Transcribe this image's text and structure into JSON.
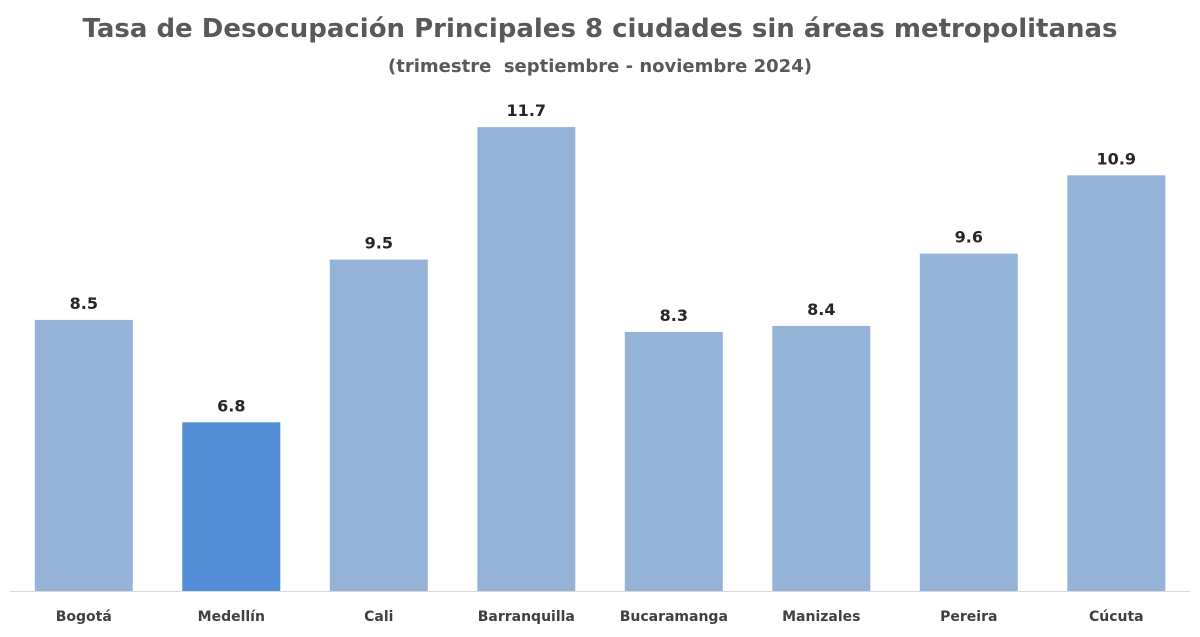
{
  "chart_data": {
    "type": "bar",
    "title": "Tasa de Desocupación Principales 8 ciudades sin áreas metropolitanas",
    "subtitle": "(trimestre  septiembre - noviembre 2024)",
    "categories": [
      "Bogotá",
      "Medellín",
      "Cali",
      "Barranquilla",
      "Bucaramanga",
      "Manizales",
      "Pereira",
      "Cúcuta"
    ],
    "values": [
      8.5,
      6.8,
      9.5,
      11.7,
      8.3,
      8.4,
      9.6,
      10.9
    ],
    "value_labels": [
      "8.5",
      "6.8",
      "9.5",
      "11.7",
      "8.3",
      "8.4",
      "9.6",
      "10.9"
    ],
    "xlabel": "",
    "ylabel": "",
    "ylim": [
      4,
      12.9
    ],
    "grid": false,
    "legend": "none",
    "bar_color": "#95B3D7",
    "highlight_color": "#538DD5",
    "highlight_index": 1
  }
}
